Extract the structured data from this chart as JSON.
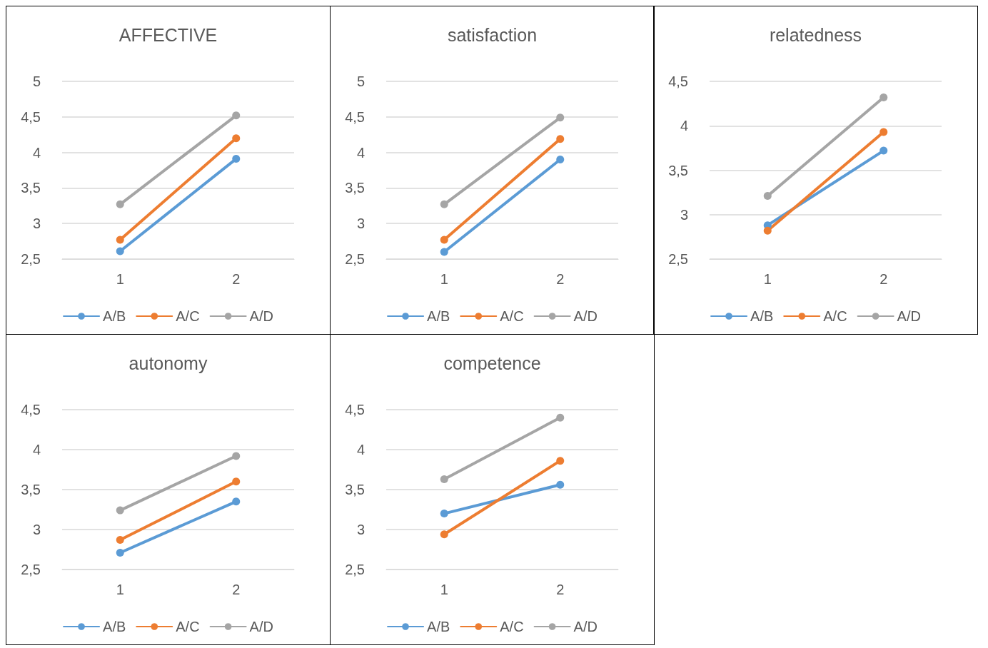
{
  "chart_data": [
    {
      "type": "line",
      "title": "AFFECTIVE",
      "categories": [
        "1",
        "2"
      ],
      "ylim": [
        2.5,
        5
      ],
      "yticks": [
        {
          "value": 2.5,
          "label": "2,5"
        },
        3,
        {
          "value": 3.5,
          "label": "3,5"
        },
        4,
        {
          "value": 4.5,
          "label": "4,5"
        },
        5
      ],
      "grid": "y",
      "legend": "bottom",
      "marker": "circle",
      "series": [
        {
          "name": "A/B",
          "color": "#5b9bd5",
          "values": [
            2.61,
            3.91
          ]
        },
        {
          "name": "A/C",
          "color": "#ed7d31",
          "values": [
            2.77,
            4.2
          ]
        },
        {
          "name": "A/D",
          "color": "#a5a5a5",
          "values": [
            3.27,
            4.52
          ]
        }
      ]
    },
    {
      "type": "line",
      "title": "satisfaction",
      "categories": [
        "1",
        "2"
      ],
      "ylim": [
        2.5,
        5
      ],
      "yticks": [
        {
          "value": 2.5,
          "label": "2,5"
        },
        3,
        {
          "value": 3.5,
          "label": "3,5"
        },
        4,
        {
          "value": 4.5,
          "label": "4,5"
        },
        5
      ],
      "grid": "y",
      "legend": "bottom",
      "marker": "circle",
      "series": [
        {
          "name": "A/B",
          "color": "#5b9bd5",
          "values": [
            2.6,
            3.9
          ]
        },
        {
          "name": "A/C",
          "color": "#ed7d31",
          "values": [
            2.77,
            4.19
          ]
        },
        {
          "name": "A/D",
          "color": "#a5a5a5",
          "values": [
            3.27,
            4.49
          ]
        }
      ]
    },
    {
      "type": "line",
      "title": "relatedness",
      "categories": [
        "1",
        "2"
      ],
      "ylim": [
        2.5,
        4.5
      ],
      "yticks": [
        {
          "value": 2.5,
          "label": "2,5"
        },
        3,
        {
          "value": 3.5,
          "label": "3,5"
        },
        4,
        {
          "value": 4.5,
          "label": "4,5"
        }
      ],
      "grid": "y",
      "legend": "bottom",
      "marker": "circle",
      "series": [
        {
          "name": "A/B",
          "color": "#5b9bd5",
          "values": [
            2.88,
            3.72
          ]
        },
        {
          "name": "A/C",
          "color": "#ed7d31",
          "values": [
            2.82,
            3.93
          ]
        },
        {
          "name": "A/D",
          "color": "#a5a5a5",
          "values": [
            3.21,
            4.32
          ]
        }
      ]
    },
    {
      "type": "line",
      "title": "autonomy",
      "categories": [
        "1",
        "2"
      ],
      "ylim": [
        2.5,
        4.5
      ],
      "yticks": [
        {
          "value": 2.5,
          "label": "2,5"
        },
        3,
        {
          "value": 3.5,
          "label": "3,5"
        },
        4,
        {
          "value": 4.5,
          "label": "4,5"
        }
      ],
      "grid": "y",
      "legend": "bottom",
      "marker": "circle",
      "series": [
        {
          "name": "A/B",
          "color": "#5b9bd5",
          "values": [
            2.71,
            3.35
          ]
        },
        {
          "name": "A/C",
          "color": "#ed7d31",
          "values": [
            2.87,
            3.6
          ]
        },
        {
          "name": "A/D",
          "color": "#a5a5a5",
          "values": [
            3.24,
            3.92
          ]
        }
      ]
    },
    {
      "type": "line",
      "title": "competence",
      "categories": [
        "1",
        "2"
      ],
      "ylim": [
        2.5,
        4.5
      ],
      "yticks": [
        {
          "value": 2.5,
          "label": "2,5"
        },
        3,
        {
          "value": 3.5,
          "label": "3,5"
        },
        4,
        {
          "value": 4.5,
          "label": "4,5"
        }
      ],
      "grid": "y",
      "legend": "bottom",
      "marker": "circle",
      "series": [
        {
          "name": "A/B",
          "color": "#5b9bd5",
          "values": [
            3.2,
            3.56
          ]
        },
        {
          "name": "A/C",
          "color": "#ed7d31",
          "values": [
            2.94,
            3.86
          ]
        },
        {
          "name": "A/D",
          "color": "#a5a5a5",
          "values": [
            3.63,
            4.4
          ]
        }
      ]
    }
  ]
}
